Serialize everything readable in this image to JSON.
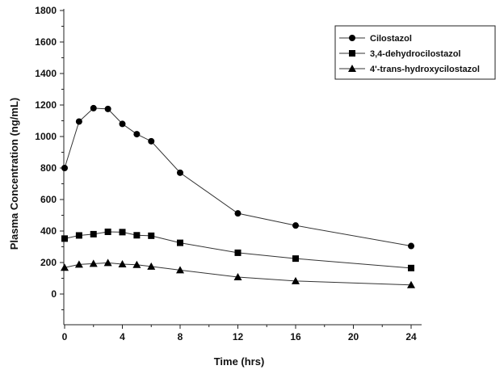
{
  "chart_data": {
    "type": "line",
    "xlabel": "Time (hrs)",
    "ylabel": "Plasma Concentration (ng/mL)",
    "xlim": [
      0,
      24
    ],
    "ylim": [
      0,
      1800
    ],
    "xticks": [
      0,
      4,
      8,
      12,
      16,
      20,
      24
    ],
    "yticks": [
      0,
      200,
      400,
      600,
      800,
      1000,
      1200,
      1400,
      1600,
      1800
    ],
    "grid": false,
    "legend_position": "top-right",
    "series": [
      {
        "name": "Cilostazol",
        "marker": "circle",
        "x": [
          0,
          1,
          2,
          3,
          4,
          5,
          6,
          8,
          12,
          16,
          24
        ],
        "values": [
          800,
          1095,
          1180,
          1175,
          1080,
          1015,
          970,
          770,
          512,
          435,
          305
        ]
      },
      {
        "name": "3,4-dehydrocilostazol",
        "marker": "square",
        "x": [
          0,
          1,
          2,
          3,
          4,
          5,
          6,
          8,
          12,
          16,
          24
        ],
        "values": [
          352,
          372,
          380,
          395,
          393,
          373,
          370,
          325,
          262,
          225,
          165
        ]
      },
      {
        "name": "4'-trans-hydroxycilostazol",
        "marker": "triangle",
        "x": [
          0,
          1,
          2,
          3,
          4,
          5,
          6,
          8,
          12,
          16,
          24
        ],
        "values": [
          168,
          188,
          193,
          198,
          190,
          186,
          175,
          152,
          108,
          83,
          58
        ]
      }
    ]
  }
}
